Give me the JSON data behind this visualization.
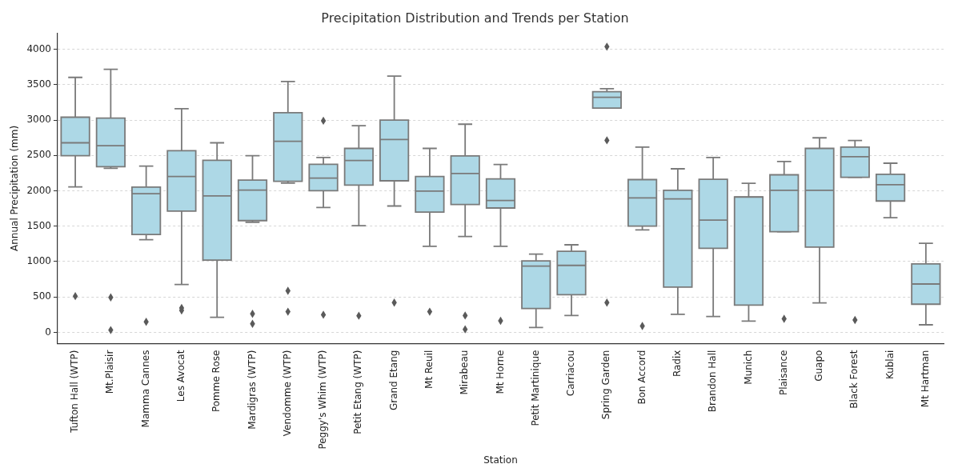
{
  "chart_data": {
    "type": "box",
    "title": "Precipitation Distribution and Trends per Station",
    "xlabel": "Station",
    "ylabel": "Annual Precipitation (mm)",
    "categories": [
      "Tufton Hall (WTP)",
      "Mt.Plaisir",
      "Mamma Cannes",
      "Les Avocat",
      "Pomme Rose",
      "Mardigras (WTP)",
      "Vendomme (WTP)",
      "Peggy's Whim (WTP)",
      "Petit Etang (WTP)",
      "Grand Etang",
      "Mt Reuil",
      "Mirabeau",
      "Mt Horne",
      "Petit Martinique",
      "Carriacou",
      "Spring Garden",
      "Bon Accord",
      "Radix",
      "Brandon Hall",
      "Munich",
      "Plaisance",
      "Guapo",
      "Black Forest",
      "Kublai",
      "Mt Hartman"
    ],
    "color": "#add8e6",
    "ylim": [
      -160,
      4230
    ],
    "yticks": [
      0,
      500,
      1000,
      1500,
      2000,
      2500,
      3000,
      3500,
      4000
    ],
    "grid": "y",
    "marker": "diamond",
    "boxes": [
      {
        "low": 2055,
        "q1": 2496,
        "median": 2678,
        "q3": 3040,
        "high": 3602,
        "outliers": [
          512
        ]
      },
      {
        "low": 2318,
        "q1": 2340,
        "median": 2638,
        "q3": 3026,
        "high": 3716,
        "outliers": [
          494,
          32
        ]
      },
      {
        "low": 1309,
        "q1": 1383,
        "median": 1959,
        "q3": 2052,
        "high": 2350,
        "outliers": [
          149
        ]
      },
      {
        "low": 676,
        "q1": 1714,
        "median": 2201,
        "q3": 2567,
        "high": 3161,
        "outliers": [
          345,
          309
        ]
      },
      {
        "low": 213,
        "q1": 1021,
        "median": 1927,
        "q3": 2432,
        "high": 2678
      },
      {
        "low": 1554,
        "q1": 1579,
        "median": 2009,
        "q3": 2151,
        "high": 2496,
        "outliers": [
          263,
          121
        ]
      },
      {
        "low": 2109,
        "q1": 2134,
        "median": 2699,
        "q3": 3104,
        "high": 3545,
        "outliers": [
          587,
          292
        ]
      },
      {
        "low": 1764,
        "q1": 2002,
        "median": 2180,
        "q3": 2375,
        "high": 2471,
        "outliers": [
          2990,
          249
        ]
      },
      {
        "low": 1508,
        "q1": 2080,
        "median": 2429,
        "q3": 2599,
        "high": 2919,
        "outliers": [
          235
        ]
      },
      {
        "low": 1785,
        "q1": 2141,
        "median": 2724,
        "q3": 2998,
        "high": 3620,
        "outliers": [
          420
        ]
      },
      {
        "low": 1216,
        "q1": 1700,
        "median": 1995,
        "q3": 2201,
        "high": 2599,
        "outliers": [
          292
        ]
      },
      {
        "low": 1355,
        "q1": 1806,
        "median": 2244,
        "q3": 2493,
        "high": 2941,
        "outliers": [
          238,
          43
        ]
      },
      {
        "low": 1216,
        "q1": 1757,
        "median": 1863,
        "q3": 2169,
        "high": 2372,
        "outliers": [
          164
        ]
      },
      {
        "low": 68,
        "q1": 338,
        "median": 935,
        "q3": 1010,
        "high": 1106
      },
      {
        "low": 238,
        "q1": 533,
        "median": 946,
        "q3": 1145,
        "high": 1237
      },
      {
        "low": 3168,
        "q1": 3168,
        "median": 3321,
        "q3": 3400,
        "high": 3442,
        "outliers": [
          4036,
          2713,
          420
        ]
      },
      {
        "low": 1447,
        "q1": 1501,
        "median": 1899,
        "q3": 2158,
        "high": 2617,
        "outliers": [
          89
        ]
      },
      {
        "low": 256,
        "q1": 640,
        "median": 1885,
        "q3": 2006,
        "high": 2311
      },
      {
        "low": 224,
        "q1": 1188,
        "median": 1586,
        "q3": 2162,
        "high": 2471
      },
      {
        "low": 160,
        "q1": 384,
        "median": 1910,
        "q3": 1913,
        "high": 2105
      },
      {
        "low": 1422,
        "q1": 1422,
        "median": 2006,
        "q3": 2226,
        "high": 2414,
        "outliers": [
          192
        ]
      },
      {
        "low": 416,
        "q1": 1205,
        "median": 2006,
        "q3": 2599,
        "high": 2749
      },
      {
        "low": 2190,
        "q1": 2190,
        "median": 2482,
        "q3": 2617,
        "high": 2710,
        "outliers": [
          174
        ]
      },
      {
        "low": 1621,
        "q1": 1856,
        "median": 2087,
        "q3": 2233,
        "high": 2390
      },
      {
        "low": 107,
        "q1": 398,
        "median": 683,
        "q3": 967,
        "high": 1259
      }
    ]
  }
}
